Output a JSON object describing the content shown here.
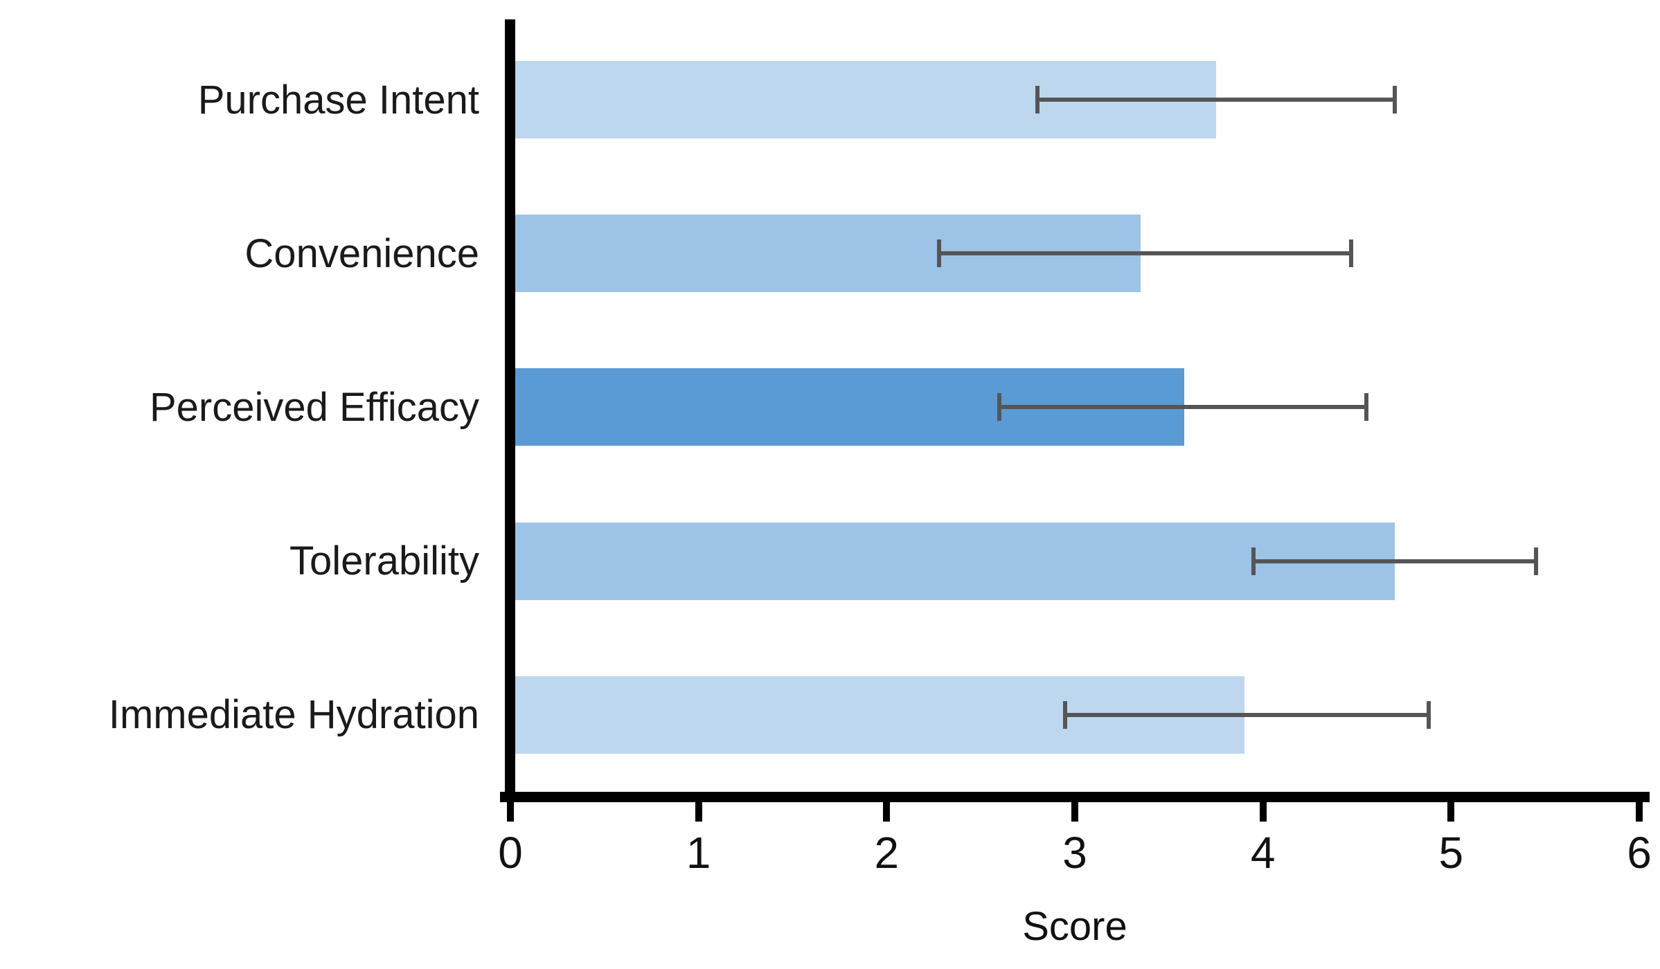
{
  "chart_data": {
    "type": "bar",
    "orientation": "horizontal",
    "title": "",
    "xlabel": "Score",
    "ylabel": "",
    "xlim": [
      0,
      6
    ],
    "x_ticks": [
      0,
      1,
      2,
      3,
      4,
      5,
      6
    ],
    "grid": false,
    "legend": false,
    "categories": [
      "Purchase Intent",
      "Convenience",
      "Perceived Efficacy",
      "Tolerability",
      "Immediate Hydration"
    ],
    "values": [
      3.75,
      3.35,
      3.58,
      4.7,
      3.9
    ],
    "error_low": [
      2.8,
      2.28,
      2.6,
      3.95,
      2.95
    ],
    "error_high": [
      4.7,
      4.47,
      4.55,
      5.45,
      4.88
    ],
    "bar_colors": [
      "#BDD7EE",
      "#9DC3E6",
      "#5B9BD5",
      "#9DC3E6",
      "#BDD7EE"
    ],
    "error_bar_color": "#555555",
    "axis_color": "#000000",
    "text_color": "#1a1a1a"
  }
}
